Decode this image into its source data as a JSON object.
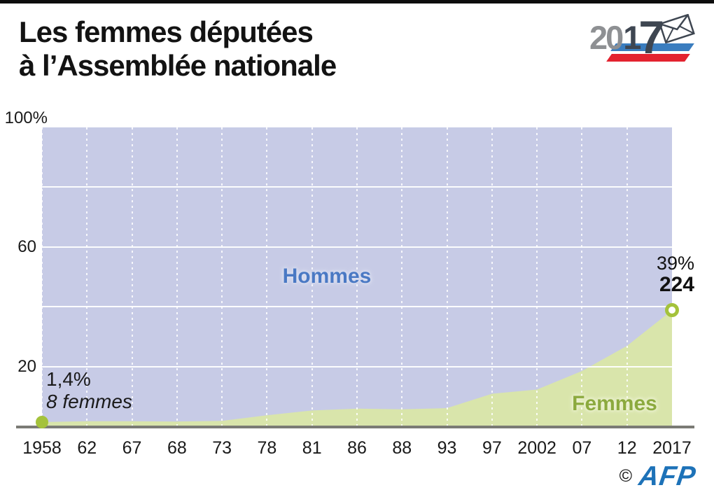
{
  "header": {
    "title_line1": "Les femmes députées",
    "title_line2": "à l’Assemblée nationale",
    "logo": {
      "year_prefix": "20",
      "year_digit": "1",
      "year_seven": "7",
      "stripe_blue": "#3a7dbf",
      "stripe_red": "#e3222f",
      "envelope_icon": "ballot-envelope-icon"
    }
  },
  "chart_data": {
    "type": "area",
    "title": "Les femmes députées à l’Assemblée nationale",
    "x_categories": [
      "1958",
      "62",
      "67",
      "68",
      "73",
      "78",
      "81",
      "86",
      "88",
      "93",
      "97",
      "2002",
      "07",
      "12",
      "2017"
    ],
    "series": [
      {
        "name": "Femmes",
        "values": [
          1.4,
          1.7,
          1.7,
          1.6,
          1.8,
          3.7,
          5.3,
          5.9,
          5.7,
          6.1,
          10.9,
          12.3,
          18.5,
          26.9,
          38.8
        ],
        "color": "#d9e5ab",
        "label_color": "#8caa3e"
      },
      {
        "name": "Hommes",
        "values": [
          98.6,
          98.3,
          98.3,
          98.4,
          98.2,
          96.3,
          94.7,
          94.1,
          94.3,
          93.9,
          89.1,
          87.7,
          81.5,
          73.1,
          61.2
        ],
        "color": "#c7cbe6",
        "label_color": "#4a79c4"
      }
    ],
    "ylim": [
      0,
      100
    ],
    "y_axis": {
      "labels": [
        {
          "value": 100,
          "text": "100%"
        },
        {
          "value": 60,
          "text": "60"
        },
        {
          "value": 20,
          "text": "20"
        }
      ],
      "gridlines": [
        20,
        40,
        60,
        80
      ]
    },
    "grid": "on",
    "legend_position": "inside-areas",
    "markers": [
      {
        "x_index": 0,
        "value": 1.4,
        "style": "dot",
        "color": "#a4c23b"
      },
      {
        "x_index": 14,
        "value": 38.8,
        "style": "ring",
        "color": "#a4c23b"
      }
    ]
  },
  "annotations": {
    "start": {
      "pct": "1,4%",
      "detail": "8 femmes"
    },
    "end": {
      "pct": "39%",
      "count": "224"
    }
  },
  "footer": {
    "copyright": "©",
    "agency": "AFP"
  },
  "colors": {
    "hommes_area": "#c7cbe6",
    "femmes_area": "#d9e5ab",
    "marker_green": "#a4c23b",
    "axis_line": "#7b7b75",
    "afp_blue": "#1d72b8"
  }
}
